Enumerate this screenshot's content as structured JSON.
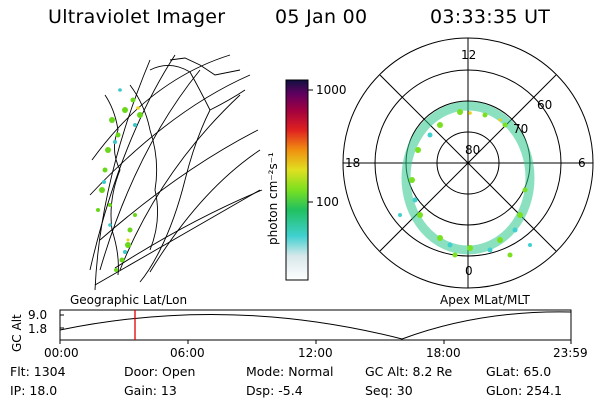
{
  "header": {
    "instrument": "Ultraviolet Imager",
    "date": "05 Jan 00",
    "time": "03:33:35 UT"
  },
  "colorbar": {
    "ticks": [
      "1000",
      "100"
    ],
    "unit_label": "photon cm⁻²s⁻¹"
  },
  "polar_plot": {
    "mlt_labels": [
      "12",
      "18",
      "6",
      "0"
    ],
    "mlat_labels": [
      "60",
      "70",
      "80"
    ]
  },
  "left_panel_label": "Geographic Lat/Lon",
  "right_panel_label": "Apex MLat/MLT",
  "altitude_plot": {
    "ylabel": "GC Alt",
    "yticks": [
      "9.0",
      "1.8"
    ],
    "xticks": [
      "00:00",
      "06:00",
      "12:00",
      "18:00",
      "23:59"
    ]
  },
  "status": {
    "flt": "Flt:  1304",
    "ip": "IP:  18.0",
    "door": "Door:  Open",
    "gain": "Gain:  13",
    "mode": "Mode:  Normal",
    "dsp": "Dsp:     -5.4",
    "gcalt": "GC Alt:  8.2 Re",
    "seq": "Seq:  30",
    "glat": "GLat:   65.0",
    "glon": "GLon:  254.1"
  }
}
